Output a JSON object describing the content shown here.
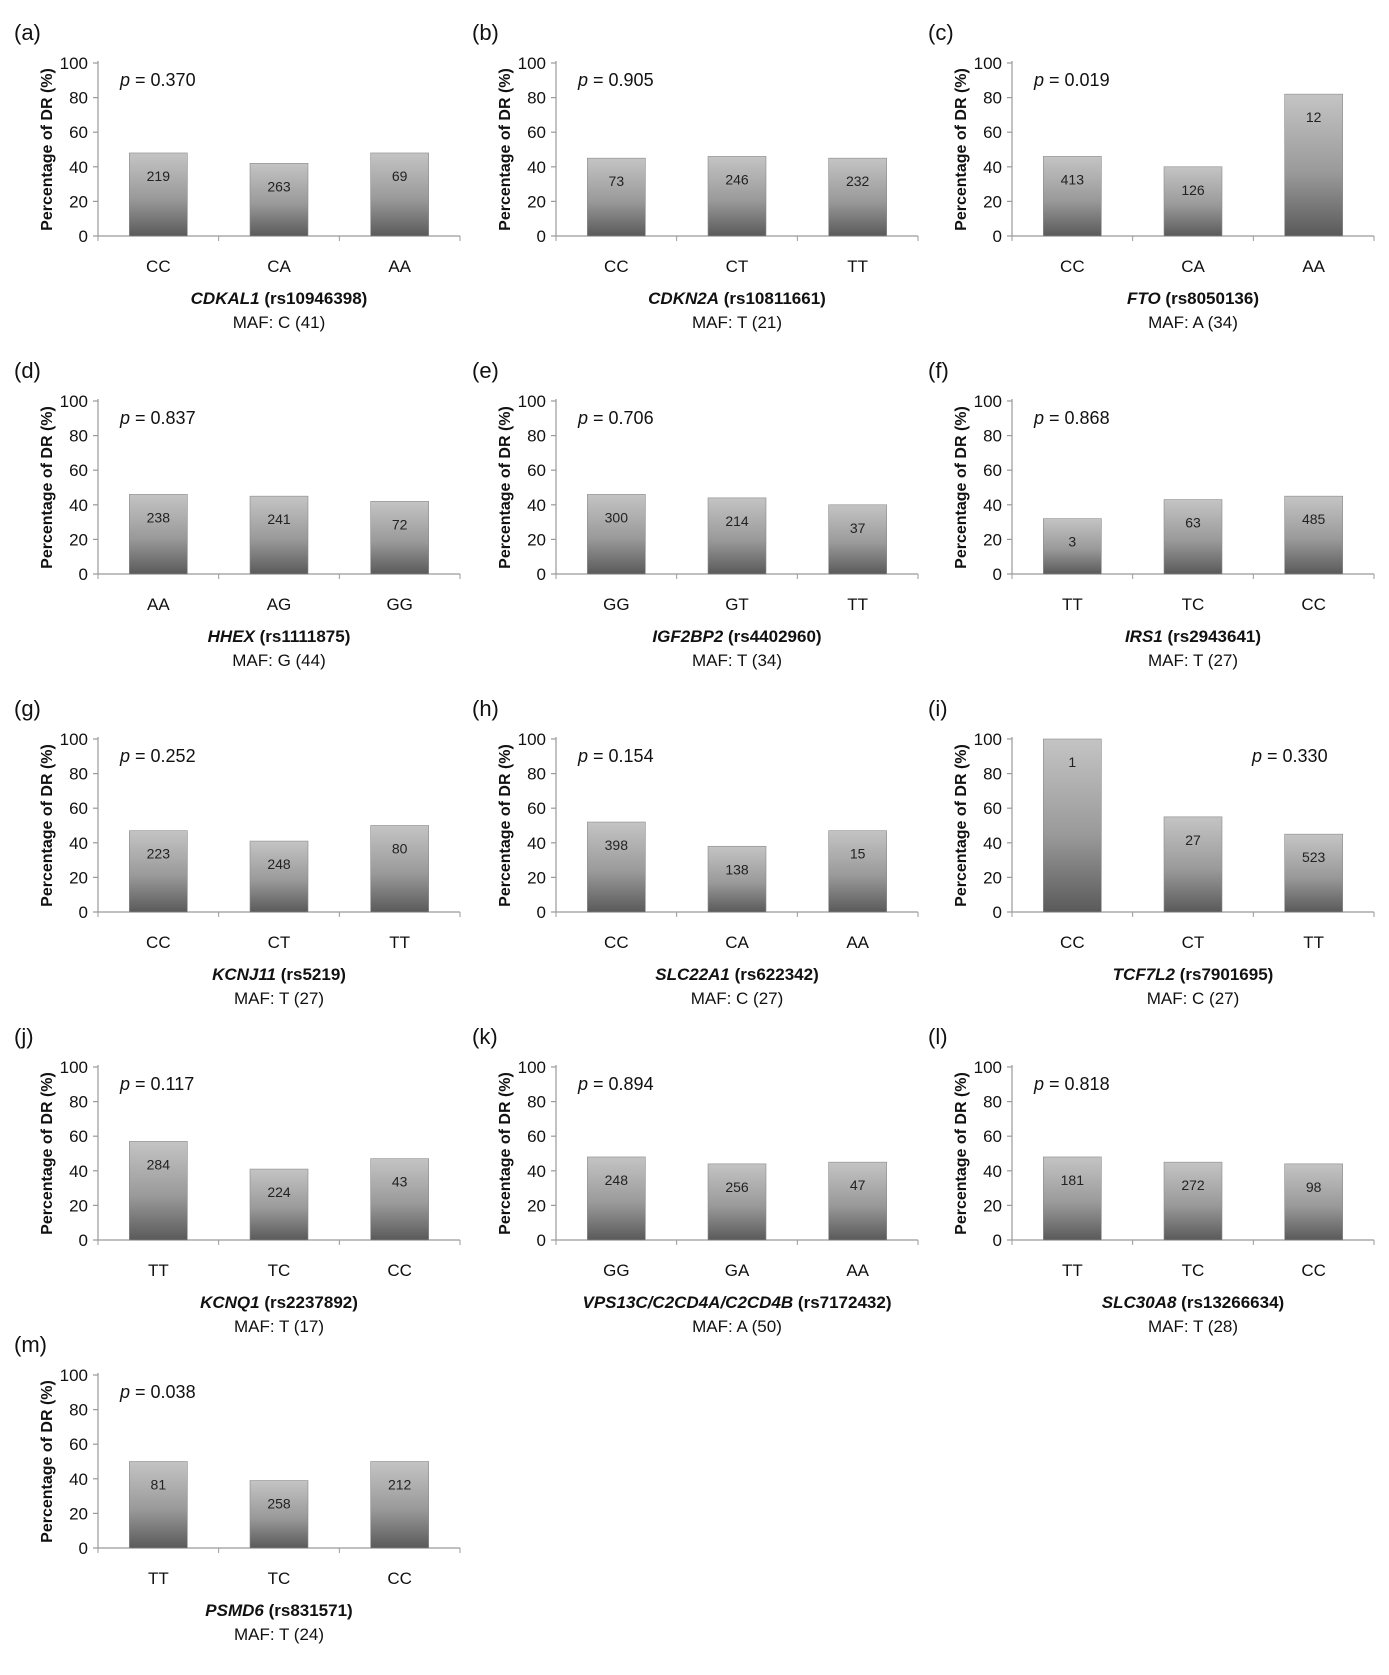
{
  "figure": {
    "ylabel": "Percentage of DR (%)",
    "yticks": [
      "0",
      "20",
      "40",
      "60",
      "80",
      "100"
    ],
    "p_prefix": "p",
    "maf_prefix": "MAF:"
  },
  "chart_data": [
    {
      "type": "bar",
      "panel": "(a)",
      "gene": "CDKAL1",
      "snp": "(rs10946398)",
      "maf": "C (41)",
      "p_value": "= 0.370",
      "p_position": "top-left",
      "categories": [
        "CC",
        "CA",
        "AA"
      ],
      "values": [
        48,
        42,
        48
      ],
      "labels": [
        "219",
        "263",
        "69"
      ],
      "ylim": [
        0,
        100
      ],
      "bar_color": "#9a9a9a"
    },
    {
      "type": "bar",
      "panel": "(b)",
      "gene": "CDKN2A",
      "snp": "(rs10811661)",
      "maf": "T (21)",
      "p_value": "= 0.905",
      "p_position": "top-left",
      "categories": [
        "CC",
        "CT",
        "TT"
      ],
      "values": [
        45,
        46,
        45
      ],
      "labels": [
        "73",
        "246",
        "232"
      ],
      "ylim": [
        0,
        100
      ],
      "bar_color": "#9a9a9a"
    },
    {
      "type": "bar",
      "panel": "(c)",
      "gene": "FTO",
      "snp": "(rs8050136)",
      "maf": "A (34)",
      "p_value": "= 0.019",
      "p_position": "top-left",
      "categories": [
        "CC",
        "CA",
        "AA"
      ],
      "values": [
        46,
        40,
        82
      ],
      "labels": [
        "413",
        "126",
        "12"
      ],
      "ylim": [
        0,
        100
      ],
      "bar_color": "#9a9a9a"
    },
    {
      "type": "bar",
      "panel": "(d)",
      "gene": "HHEX",
      "snp": "(rs1111875)",
      "maf": "G (44)",
      "p_value": "= 0.837",
      "p_position": "top-left",
      "categories": [
        "AA",
        "AG",
        "GG"
      ],
      "values": [
        46,
        45,
        42
      ],
      "labels": [
        "238",
        "241",
        "72"
      ],
      "ylim": [
        0,
        100
      ],
      "bar_color": "#9a9a9a"
    },
    {
      "type": "bar",
      "panel": "(e)",
      "gene": "IGF2BP2",
      "snp": "(rs4402960)",
      "maf": "T (34)",
      "p_value": "= 0.706",
      "p_position": "top-left",
      "categories": [
        "GG",
        "GT",
        "TT"
      ],
      "values": [
        46,
        44,
        40
      ],
      "labels": [
        "300",
        "214",
        "37"
      ],
      "ylim": [
        0,
        100
      ],
      "bar_color": "#9a9a9a"
    },
    {
      "type": "bar",
      "panel": "(f)",
      "gene": "IRS1",
      "snp": "(rs2943641)",
      "maf": "T (27)",
      "p_value": "= 0.868",
      "p_position": "top-left",
      "categories": [
        "TT",
        "TC",
        "CC"
      ],
      "values": [
        32,
        43,
        45
      ],
      "labels": [
        "3",
        "63",
        "485"
      ],
      "ylim": [
        0,
        100
      ],
      "bar_color": "#9a9a9a"
    },
    {
      "type": "bar",
      "panel": "(g)",
      "gene": "KCNJ11",
      "snp": "(rs5219)",
      "maf": "T (27)",
      "p_value": "= 0.252",
      "p_position": "top-left",
      "categories": [
        "CC",
        "CT",
        "TT"
      ],
      "values": [
        47,
        41,
        50
      ],
      "labels": [
        "223",
        "248",
        "80"
      ],
      "ylim": [
        0,
        100
      ],
      "bar_color": "#9a9a9a"
    },
    {
      "type": "bar",
      "panel": "(h)",
      "gene": "SLC22A1",
      "snp": "(rs622342)",
      "maf": "C (27)",
      "p_value": "= 0.154",
      "p_position": "top-left",
      "categories": [
        "CC",
        "CA",
        "AA"
      ],
      "values": [
        52,
        38,
        47
      ],
      "labels": [
        "398",
        "138",
        "15"
      ],
      "ylim": [
        0,
        100
      ],
      "bar_color": "#9a9a9a"
    },
    {
      "type": "bar",
      "panel": "(i)",
      "gene": "TCF7L2",
      "snp": "(rs7901695)",
      "maf": "C (27)",
      "p_value": "= 0.330",
      "p_position": "top-right",
      "categories": [
        "CC",
        "CT",
        "TT"
      ],
      "values": [
        100,
        55,
        45
      ],
      "labels": [
        "1",
        "27",
        "523"
      ],
      "ylim": [
        0,
        100
      ],
      "bar_color": "#9a9a9a"
    },
    {
      "type": "bar",
      "panel": "(j)",
      "gene": "KCNQ1",
      "snp": "(rs2237892)",
      "maf": "T (17)",
      "p_value": "= 0.117",
      "p_position": "top-left",
      "categories": [
        "TT",
        "TC",
        "CC"
      ],
      "values": [
        57,
        41,
        47
      ],
      "labels": [
        "284",
        "224",
        "43"
      ],
      "ylim": [
        0,
        100
      ],
      "bar_color": "#9a9a9a"
    },
    {
      "type": "bar",
      "panel": "(k)",
      "gene": "VPS13C/C2CD4A/C2CD4B",
      "snp": "(rs7172432)",
      "maf": "A (50)",
      "p_value": "= 0.894",
      "p_position": "top-left",
      "categories": [
        "GG",
        "GA",
        "AA"
      ],
      "values": [
        48,
        44,
        45
      ],
      "labels": [
        "248",
        "256",
        "47"
      ],
      "ylim": [
        0,
        100
      ],
      "bar_color": "#9a9a9a"
    },
    {
      "type": "bar",
      "panel": "(l)",
      "gene": "SLC30A8",
      "snp": "(rs13266634)",
      "maf": "T (28)",
      "p_value": "= 0.818",
      "p_position": "top-left",
      "categories": [
        "TT",
        "TC",
        "CC"
      ],
      "values": [
        48,
        45,
        44
      ],
      "labels": [
        "181",
        "272",
        "98"
      ],
      "ylim": [
        0,
        100
      ],
      "bar_color": "#9a9a9a"
    },
    {
      "type": "bar",
      "panel": "(m)",
      "gene": "PSMD6",
      "snp": "(rs831571)",
      "maf": "T (24)",
      "p_value": "= 0.038",
      "p_position": "top-left",
      "categories": [
        "TT",
        "TC",
        "CC"
      ],
      "values": [
        50,
        39,
        50
      ],
      "labels": [
        "81",
        "258",
        "212"
      ],
      "ylim": [
        0,
        100
      ],
      "bar_color": "#9a9a9a"
    }
  ]
}
